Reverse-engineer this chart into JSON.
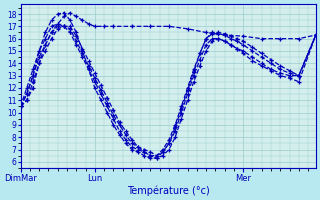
{
  "xlabel": "Température (°c)",
  "bg_color": "#b8e8f0",
  "plot_bg_color": "#d4eeee",
  "line_color": "#0000bb",
  "grid_color": "#99cccc",
  "ylim": [
    5.5,
    18.8
  ],
  "yticks": [
    6,
    7,
    8,
    9,
    10,
    11,
    12,
    13,
    14,
    15,
    16,
    17,
    18
  ],
  "xtick_labels": [
    "DimMar",
    "Lun",
    "Mer"
  ],
  "xtick_pos": [
    0,
    48,
    144
  ],
  "n_hours": 192,
  "series": [
    [
      [
        0,
        10.5
      ],
      [
        4,
        11
      ],
      [
        8,
        12
      ],
      [
        12,
        14
      ],
      [
        16,
        15.5
      ],
      [
        20,
        16.5
      ],
      [
        24,
        17.2
      ],
      [
        28,
        17.8
      ],
      [
        32,
        18.1
      ],
      [
        36,
        17.8
      ],
      [
        40,
        17.5
      ],
      [
        44,
        17.2
      ],
      [
        48,
        17.0
      ],
      [
        54,
        17.0
      ],
      [
        60,
        17.0
      ],
      [
        72,
        17.0
      ],
      [
        84,
        17.0
      ],
      [
        96,
        17.0
      ],
      [
        108,
        16.8
      ],
      [
        120,
        16.5
      ],
      [
        132,
        16.3
      ],
      [
        144,
        16.2
      ],
      [
        156,
        16.0
      ],
      [
        168,
        16.0
      ],
      [
        180,
        16.0
      ],
      [
        191,
        16.3
      ]
    ],
    [
      [
        0,
        10.5
      ],
      [
        4,
        11.5
      ],
      [
        8,
        13
      ],
      [
        12,
        15
      ],
      [
        16,
        16.5
      ],
      [
        20,
        17.5
      ],
      [
        24,
        18.0
      ],
      [
        28,
        18.1
      ],
      [
        32,
        17.5
      ],
      [
        36,
        16.5
      ],
      [
        40,
        15.0
      ],
      [
        44,
        13.5
      ],
      [
        48,
        12.0
      ],
      [
        52,
        11.0
      ],
      [
        56,
        10.0
      ],
      [
        60,
        9.0
      ],
      [
        64,
        8.2
      ],
      [
        68,
        7.5
      ],
      [
        72,
        7.0
      ],
      [
        76,
        6.8
      ],
      [
        80,
        6.5
      ],
      [
        84,
        6.3
      ],
      [
        88,
        6.3
      ],
      [
        92,
        6.5
      ],
      [
        96,
        7.0
      ],
      [
        100,
        8.0
      ],
      [
        104,
        9.5
      ],
      [
        108,
        11.0
      ],
      [
        112,
        12.5
      ],
      [
        116,
        13.8
      ],
      [
        120,
        15.0
      ],
      [
        124,
        15.8
      ],
      [
        128,
        16.0
      ],
      [
        132,
        15.8
      ],
      [
        136,
        15.5
      ],
      [
        140,
        15.2
      ],
      [
        144,
        15.0
      ],
      [
        150,
        14.5
      ],
      [
        156,
        14.0
      ],
      [
        162,
        13.5
      ],
      [
        168,
        13.2
      ],
      [
        174,
        13.0
      ],
      [
        180,
        13.0
      ],
      [
        191,
        16.3
      ]
    ],
    [
      [
        0,
        10.5
      ],
      [
        4,
        12
      ],
      [
        8,
        13.5
      ],
      [
        12,
        15
      ],
      [
        16,
        16
      ],
      [
        20,
        17
      ],
      [
        24,
        17.2
      ],
      [
        28,
        17.0
      ],
      [
        32,
        16.5
      ],
      [
        36,
        15.5
      ],
      [
        40,
        14.5
      ],
      [
        44,
        13.5
      ],
      [
        48,
        12.5
      ],
      [
        52,
        11.5
      ],
      [
        56,
        10.5
      ],
      [
        60,
        9.5
      ],
      [
        64,
        8.5
      ],
      [
        68,
        7.8
      ],
      [
        72,
        7.2
      ],
      [
        76,
        7.0
      ],
      [
        80,
        6.8
      ],
      [
        84,
        6.5
      ],
      [
        88,
        6.5
      ],
      [
        92,
        6.8
      ],
      [
        96,
        7.5
      ],
      [
        100,
        8.5
      ],
      [
        104,
        10.0
      ],
      [
        108,
        11.5
      ],
      [
        112,
        13.0
      ],
      [
        116,
        14.3
      ],
      [
        120,
        15.5
      ],
      [
        124,
        16.0
      ],
      [
        128,
        16.0
      ],
      [
        132,
        15.8
      ],
      [
        136,
        15.5
      ],
      [
        140,
        15.2
      ],
      [
        144,
        14.8
      ],
      [
        150,
        14.2
      ],
      [
        156,
        13.8
      ],
      [
        162,
        13.4
      ],
      [
        168,
        13.0
      ],
      [
        174,
        12.8
      ],
      [
        180,
        12.5
      ],
      [
        191,
        16.3
      ]
    ],
    [
      [
        0,
        10.5
      ],
      [
        4,
        11.5
      ],
      [
        8,
        13
      ],
      [
        12,
        14.5
      ],
      [
        16,
        15.5
      ],
      [
        20,
        16.5
      ],
      [
        24,
        17.0
      ],
      [
        28,
        17.0
      ],
      [
        32,
        16.8
      ],
      [
        36,
        15.8
      ],
      [
        40,
        14.8
      ],
      [
        44,
        13.8
      ],
      [
        48,
        12.8
      ],
      [
        52,
        11.8
      ],
      [
        56,
        10.8
      ],
      [
        60,
        9.8
      ],
      [
        64,
        9.0
      ],
      [
        68,
        8.2
      ],
      [
        72,
        7.5
      ],
      [
        76,
        7.2
      ],
      [
        80,
        7.0
      ],
      [
        84,
        6.8
      ],
      [
        88,
        6.5
      ],
      [
        92,
        7.0
      ],
      [
        96,
        7.8
      ],
      [
        100,
        9.0
      ],
      [
        104,
        10.5
      ],
      [
        108,
        12.0
      ],
      [
        112,
        13.5
      ],
      [
        116,
        14.8
      ],
      [
        120,
        16.0
      ],
      [
        124,
        16.4
      ],
      [
        128,
        16.4
      ],
      [
        132,
        16.3
      ],
      [
        136,
        16.0
      ],
      [
        140,
        15.8
      ],
      [
        144,
        15.5
      ],
      [
        150,
        15.0
      ],
      [
        156,
        14.5
      ],
      [
        162,
        14.0
      ],
      [
        168,
        13.5
      ],
      [
        174,
        13.2
      ],
      [
        180,
        13.0
      ],
      [
        191,
        16.3
      ]
    ],
    [
      [
        0,
        10.5
      ],
      [
        4,
        11
      ],
      [
        8,
        12.5
      ],
      [
        12,
        14
      ],
      [
        16,
        15
      ],
      [
        20,
        16
      ],
      [
        24,
        16.8
      ],
      [
        28,
        17.0
      ],
      [
        32,
        17.0
      ],
      [
        36,
        16.2
      ],
      [
        40,
        15.2
      ],
      [
        44,
        14.2
      ],
      [
        48,
        13.2
      ],
      [
        52,
        12.2
      ],
      [
        56,
        11.2
      ],
      [
        60,
        10.2
      ],
      [
        64,
        9.2
      ],
      [
        68,
        8.5
      ],
      [
        72,
        7.8
      ],
      [
        76,
        7.2
      ],
      [
        80,
        6.8
      ],
      [
        84,
        6.5
      ],
      [
        88,
        6.3
      ],
      [
        92,
        6.8
      ],
      [
        96,
        7.5
      ],
      [
        100,
        8.8
      ],
      [
        104,
        10.3
      ],
      [
        108,
        11.8
      ],
      [
        112,
        13.3
      ],
      [
        116,
        14.8
      ],
      [
        120,
        16.0
      ],
      [
        124,
        16.5
      ],
      [
        128,
        16.5
      ],
      [
        132,
        16.4
      ],
      [
        136,
        16.2
      ],
      [
        140,
        16.0
      ],
      [
        144,
        15.8
      ],
      [
        150,
        15.3
      ],
      [
        156,
        14.8
      ],
      [
        162,
        14.3
      ],
      [
        168,
        13.8
      ],
      [
        174,
        13.4
      ],
      [
        180,
        13.0
      ],
      [
        191,
        16.3
      ]
    ]
  ]
}
